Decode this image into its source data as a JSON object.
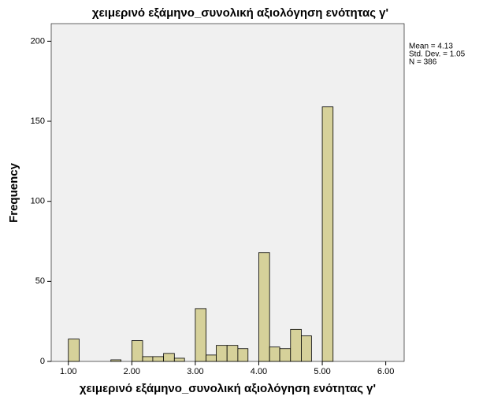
{
  "chart_data": {
    "type": "histogram",
    "title": "χειμερινό εξάμηνο_συνολική αξιολόγηση ενότητας γ'",
    "x_label": "χειμερινό εξάμηνο_συνολική αξιολόγηση ενότητας γ'",
    "y_label": "Frequency",
    "annotations": [
      "Mean = 4.13",
      "Std. Dev. = 1.05",
      "N = 386"
    ],
    "bins": [
      1,
      1.17,
      1.33,
      1.5,
      1.67,
      1.83,
      2,
      2.17,
      2.33,
      2.5,
      2.67,
      2.83,
      3,
      3.17,
      3.33,
      3.5,
      3.67,
      3.83,
      4,
      4.17,
      4.33,
      4.5,
      4.67,
      4.83,
      5,
      5.17
    ],
    "values": [
      14,
      0,
      0,
      0,
      1,
      0,
      13,
      3,
      3,
      5,
      2,
      0,
      33,
      4,
      10,
      10,
      8,
      0,
      68,
      9,
      8,
      20,
      16,
      0,
      159
    ],
    "color": "#d6d19a",
    "xlim": [
      0.73,
      6.29
    ],
    "ylim": [
      0,
      211
    ],
    "xticks": [
      {
        "value": 1,
        "label": "1.00"
      },
      {
        "value": 2,
        "label": "2.00"
      },
      {
        "value": 3,
        "label": "3.00"
      },
      {
        "value": 4,
        "label": "4.00"
      },
      {
        "value": 5,
        "label": "5.00"
      },
      {
        "value": 6,
        "label": "6.00"
      }
    ],
    "yticks": [
      0,
      50,
      100,
      150,
      200
    ]
  }
}
